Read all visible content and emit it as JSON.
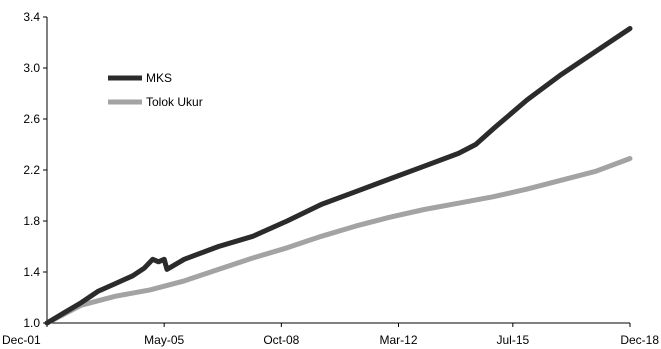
{
  "chart_data": {
    "type": "line",
    "title": "",
    "xlabel": "",
    "ylabel": "",
    "x_tick_labels": [
      "Dec-01",
      "May-05",
      "Oct-08",
      "Mar-12",
      "Jul-15",
      "Dec-18"
    ],
    "y_tick_labels": [
      "1.0",
      "1.4",
      "1.8",
      "2.2",
      "2.6",
      "3.0",
      "3.4"
    ],
    "ylim": [
      1.0,
      3.4
    ],
    "xlim": [
      "Dec-01",
      "Dec-18"
    ],
    "grid": false,
    "legend_position": "top-left",
    "series": [
      {
        "name": "MKS",
        "color": "#2b2b2b",
        "points": [
          [
            "Dec-01",
            1.0
          ],
          [
            "Jun-02",
            1.08
          ],
          [
            "Dec-02",
            1.16
          ],
          [
            "Jun-03",
            1.25
          ],
          [
            "Dec-03",
            1.31
          ],
          [
            "Jun-04",
            1.37
          ],
          [
            "Oct-04",
            1.43
          ],
          [
            "Jan-05",
            1.5
          ],
          [
            "Mar-05",
            1.48
          ],
          [
            "May-05",
            1.5
          ],
          [
            "Jun-05",
            1.42
          ],
          [
            "Dec-05",
            1.5
          ],
          [
            "Dec-06",
            1.6
          ],
          [
            "Dec-07",
            1.68
          ],
          [
            "Dec-08",
            1.8
          ],
          [
            "Dec-09",
            1.93
          ],
          [
            "Dec-10",
            2.03
          ],
          [
            "Dec-11",
            2.13
          ],
          [
            "Dec-12",
            2.23
          ],
          [
            "Dec-13",
            2.33
          ],
          [
            "Jun-14",
            2.4
          ],
          [
            "Dec-14",
            2.52
          ],
          [
            "Dec-15",
            2.75
          ],
          [
            "Dec-16",
            2.95
          ],
          [
            "Dec-17",
            3.13
          ],
          [
            "Dec-18",
            3.31
          ]
        ]
      },
      {
        "name": "Tolok Ukur",
        "color": "#a3a3a3",
        "points": [
          [
            "Dec-01",
            1.0
          ],
          [
            "Dec-02",
            1.14
          ],
          [
            "Dec-03",
            1.21
          ],
          [
            "Dec-04",
            1.26
          ],
          [
            "Dec-05",
            1.33
          ],
          [
            "Dec-06",
            1.42
          ],
          [
            "Dec-07",
            1.51
          ],
          [
            "Dec-08",
            1.59
          ],
          [
            "Dec-09",
            1.68
          ],
          [
            "Dec-10",
            1.76
          ],
          [
            "Dec-11",
            1.83
          ],
          [
            "Dec-12",
            1.89
          ],
          [
            "Dec-13",
            1.94
          ],
          [
            "Dec-14",
            1.99
          ],
          [
            "Dec-15",
            2.05
          ],
          [
            "Dec-16",
            2.12
          ],
          [
            "Dec-17",
            2.19
          ],
          [
            "Dec-18",
            2.29
          ]
        ]
      }
    ]
  }
}
